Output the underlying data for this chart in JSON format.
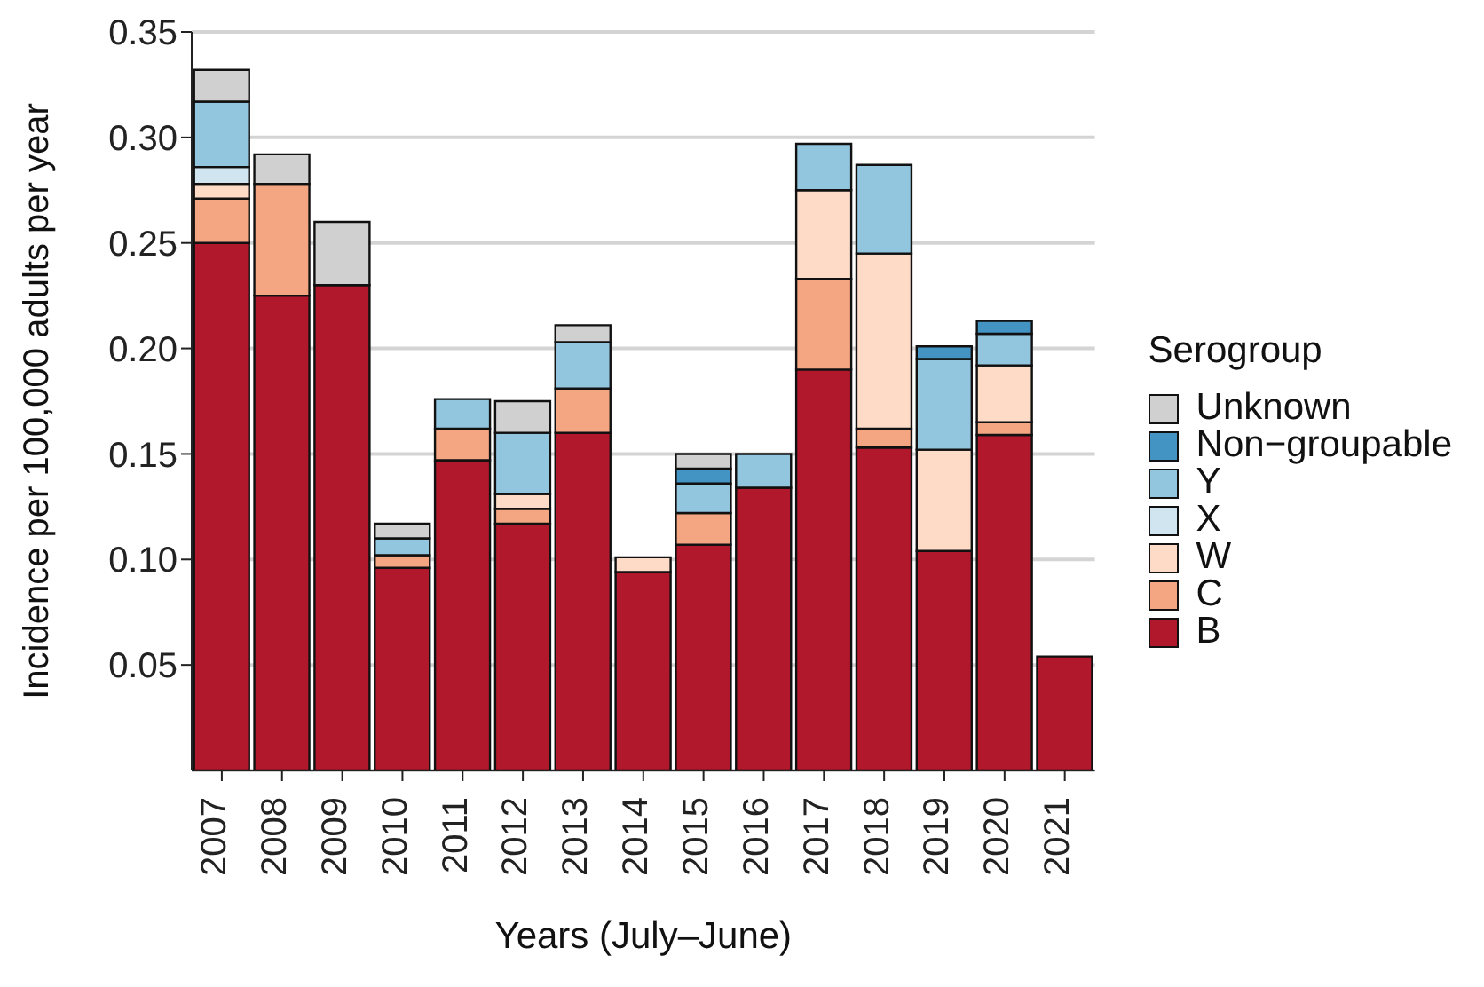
{
  "chart_data": {
    "type": "bar",
    "stacked": true,
    "xlabel": "Years (July–June)",
    "ylabel": "Incidence per 100,000 adults per year",
    "legend_title": "Serogroup",
    "legend": "right",
    "grid": "y",
    "categories": [
      "2007",
      "2008",
      "2009",
      "2010",
      "2011",
      "2012",
      "2013",
      "2014",
      "2015",
      "2016",
      "2017",
      "2018",
      "2019",
      "2020",
      "2021"
    ],
    "ylim": [
      0,
      0.35
    ],
    "yticks": [
      {
        "value": 0.05,
        "label": "0.05"
      },
      {
        "value": 0.1,
        "label": "0.10"
      },
      {
        "value": 0.15,
        "label": "0.15"
      },
      {
        "value": 0.2,
        "label": "0.20"
      },
      {
        "value": 0.25,
        "label": "0.25"
      },
      {
        "value": 0.3,
        "label": "0.30"
      },
      {
        "value": 0.35,
        "label": "0.35"
      }
    ],
    "series": [
      {
        "name": "B",
        "color": "#b2182b",
        "values": [
          0.25,
          0.225,
          0.23,
          0.096,
          0.147,
          0.117,
          0.16,
          0.094,
          0.107,
          0.134,
          0.19,
          0.153,
          0.104,
          0.159,
          0.054
        ]
      },
      {
        "name": "C",
        "color": "#f4a582",
        "values": [
          0.021,
          0.053,
          null,
          0.006,
          0.015,
          0.007,
          0.021,
          null,
          0.015,
          null,
          0.043,
          0.009,
          null,
          0.006,
          null
        ]
      },
      {
        "name": "W",
        "color": "#fddbc7",
        "values": [
          0.007,
          null,
          null,
          null,
          null,
          0.007,
          null,
          0.007,
          null,
          null,
          0.042,
          0.083,
          0.048,
          0.027,
          null
        ]
      },
      {
        "name": "X",
        "color": "#d1e5f0",
        "values": [
          0.008,
          null,
          null,
          null,
          null,
          null,
          null,
          null,
          null,
          null,
          null,
          null,
          null,
          null,
          null
        ]
      },
      {
        "name": "Y",
        "color": "#92c5de",
        "values": [
          0.031,
          null,
          null,
          0.008,
          0.014,
          0.029,
          0.022,
          null,
          0.014,
          0.016,
          0.022,
          0.042,
          0.043,
          0.015,
          null
        ]
      },
      {
        "name": "Non−groupable",
        "color": "#4393c3",
        "values": [
          null,
          null,
          null,
          null,
          null,
          null,
          null,
          null,
          0.007,
          null,
          null,
          null,
          0.006,
          0.006,
          null
        ]
      },
      {
        "name": "Unknown",
        "color": "#d0d0d0",
        "values": [
          0.015,
          0.014,
          0.03,
          0.007,
          null,
          0.015,
          0.008,
          null,
          0.007,
          null,
          null,
          null,
          null,
          null,
          null
        ]
      }
    ]
  }
}
